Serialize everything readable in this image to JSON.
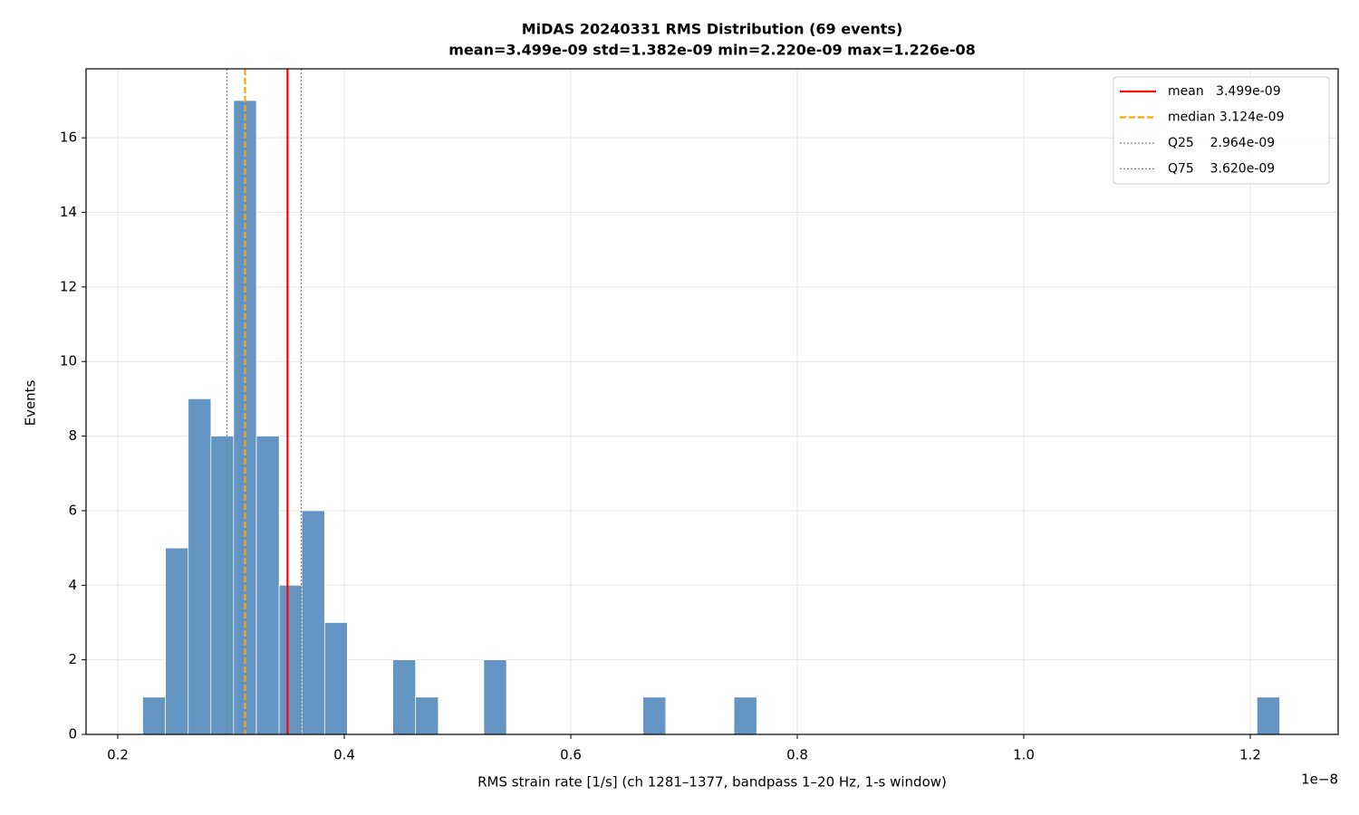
{
  "chart_data": {
    "type": "histogram",
    "title": "MiDAS 20240331  RMS Distribution  (69 events)",
    "subtitle": "mean=3.499e-09  std=1.382e-09  min=2.220e-09  max=1.226e-08",
    "x_label": "RMS strain rate [1/s]  (ch 1281–1377, bandpass 1–20 Hz, 1-s window)",
    "x_offset_label": "1e−8",
    "y_label": "Events",
    "bins": [
      0.222,
      0.24208,
      0.26216,
      0.28224,
      0.30232,
      0.3224,
      0.34248,
      0.36256,
      0.38264,
      0.40272,
      0.4228,
      0.44288,
      0.46296,
      0.48304,
      0.50312,
      0.5232,
      0.54328,
      0.56336,
      0.58344,
      0.60352,
      0.6236,
      0.64368,
      0.66376,
      0.68384,
      0.70392,
      0.724,
      0.74408,
      0.76416,
      0.78424,
      0.80432,
      0.8244,
      0.84448,
      0.86456,
      0.88464,
      0.90472,
      0.9248,
      0.94488,
      0.96496,
      0.98504,
      1.00512,
      1.0252,
      1.04528,
      1.06536,
      1.08544,
      1.10552,
      1.1256,
      1.14568,
      1.16576,
      1.18584,
      1.20592,
      1.226
    ],
    "counts": [
      1,
      5,
      9,
      8,
      17,
      8,
      4,
      6,
      3,
      0,
      0,
      2,
      1,
      0,
      0,
      2,
      0,
      0,
      0,
      0,
      0,
      0,
      1,
      0,
      0,
      0,
      1,
      0,
      0,
      0,
      0,
      0,
      0,
      0,
      0,
      0,
      0,
      0,
      0,
      0,
      0,
      0,
      0,
      0,
      0,
      0,
      0,
      0,
      0,
      1
    ],
    "color": "#6495c2",
    "vlines": [
      {
        "name": "mean   3.499e-09",
        "value": 0.3499,
        "color": "#ff0000",
        "linestyle": "solid"
      },
      {
        "name": "median 3.124e-09",
        "value": 0.3124,
        "color": "#ffa500",
        "linestyle": "dashed"
      },
      {
        "name": "Q25    2.964e-09",
        "value": 0.2964,
        "color": "#808080",
        "linestyle": "dotted"
      },
      {
        "name": "Q75    3.620e-09",
        "value": 0.362,
        "color": "#808080",
        "linestyle": "dotted"
      }
    ],
    "xlim": [
      0.172,
      1.2776
    ],
    "xticks": [
      0.2,
      0.4,
      0.6,
      0.8,
      {
        "value": 1,
        "label": "1.0"
      },
      1.2
    ],
    "ylim": [
      0,
      17.85
    ],
    "yticks": [
      0,
      2,
      4,
      6,
      8,
      10,
      12,
      14,
      16
    ],
    "grid": true,
    "legend": "upper right"
  }
}
